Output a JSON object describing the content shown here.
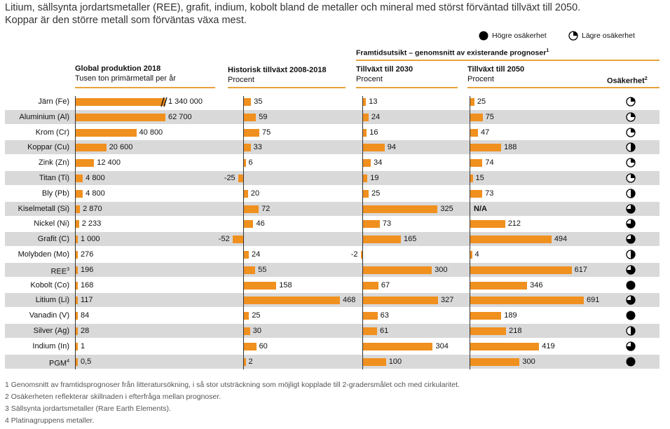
{
  "title_line1": "Litium, sällsynta jordartsmetaller (REE), grafit, indium, kobolt bland de metaller och mineral med störst förväntad tillväxt till 2050.",
  "title_line2": "Koppar är den större metall som förväntas växa mest.",
  "legend": {
    "high": "Högre osäkerhet",
    "low": "Lägre osäkerhet",
    "icon_high": "filled-circle-icon",
    "icon_low": "quarter-circle-icon"
  },
  "outlook_header": "Framtidsutsikt – genomsnitt av existerande prognoser",
  "outlook_sup": "1",
  "columns": {
    "production": {
      "title": "Global produktion 2018",
      "subtitle": "Tusen ton primärmetall per år"
    },
    "historic": {
      "title": "Historisk tillväxt 2008-2018",
      "subtitle": "Procent"
    },
    "g2030": {
      "title": "Tillväxt till 2030",
      "subtitle": "Procent"
    },
    "g2050": {
      "title": "Tillväxt till 2050",
      "subtitle": "Procent"
    },
    "uncertainty": {
      "title": "Osäkerhet",
      "sup": "2"
    }
  },
  "colors": {
    "bar": "#f0901f",
    "rule": "#e8a33a",
    "shade": "#d9d9d9"
  },
  "chart_data": {
    "type": "bar",
    "categories": [
      "Järn (Fe)",
      "Aluminium (Al)",
      "Krom (Cr)",
      "Koppar (Cu)",
      "Zink (Zn)",
      "Titan (Ti)",
      "Bly (Pb)",
      "Kiselmetall (Si)",
      "Nickel (Ni)",
      "Grafit (C)",
      "Molybden (Mo)",
      "REE",
      "Kobolt (Co)",
      "Litium (Li)",
      "Vanadin (V)",
      "Silver (Ag)",
      "Indium (In)",
      "PGM"
    ],
    "category_sups": [
      "",
      "",
      "",
      "",
      "",
      "",
      "",
      "",
      "",
      "",
      "",
      "3",
      "",
      "",
      "",
      "",
      "",
      "4"
    ],
    "series": [
      {
        "name": "Global produktion 2018",
        "values": [
          1340000,
          62700,
          40800,
          20600,
          12400,
          4800,
          4800,
          2870,
          2233,
          1000,
          276,
          196,
          168,
          117,
          84,
          28,
          1,
          0.5
        ],
        "labels": [
          "1 340 000",
          "62 700",
          "40 800",
          "20 600",
          "12 400",
          "4 800",
          "4 800",
          "2 870",
          "2 233",
          "1 000",
          "276",
          "196",
          "168",
          "117",
          "84",
          "28",
          "1",
          "0,5"
        ],
        "broken_axis_index": 0
      },
      {
        "name": "Historisk tillväxt 2008-2018",
        "values": [
          35,
          59,
          75,
          33,
          6,
          -25,
          20,
          72,
          46,
          -52,
          24,
          55,
          158,
          468,
          25,
          30,
          60,
          2
        ]
      },
      {
        "name": "Tillväxt till 2030",
        "values": [
          13,
          24,
          16,
          94,
          34,
          19,
          25,
          325,
          73,
          165,
          -2,
          300,
          67,
          327,
          63,
          61,
          304,
          100
        ]
      },
      {
        "name": "Tillväxt till 2050",
        "values": [
          25,
          75,
          47,
          188,
          74,
          15,
          73,
          null,
          212,
          494,
          4,
          617,
          346,
          691,
          189,
          218,
          419,
          300
        ],
        "labels": [
          "25",
          "75",
          "47",
          "188",
          "74",
          "15",
          "73",
          "N/A",
          "212",
          "494",
          "4",
          "617",
          "346",
          "691",
          "189",
          "218",
          "419",
          "300"
        ]
      }
    ],
    "uncertainty": [
      0.25,
      0.25,
      0.25,
      0.5,
      0.25,
      0.25,
      0.5,
      0.75,
      0.75,
      0.75,
      0.5,
      0.75,
      1,
      0.75,
      1,
      0.5,
      0.75,
      1
    ]
  },
  "footnotes": [
    "1 Genomsnitt av framtidsprognoser från litteratursökning, i så stor utsträckning som möjligt kopplade till 2-gradersmålet och med cirkularitet.",
    "2 Osäkerheten reflekterar skillnaden i efterfråga mellan prognoser.",
    "3 Sällsynta jordartsmetaller (Rare Earth Elements).",
    "4 Platinagruppens metaller."
  ]
}
